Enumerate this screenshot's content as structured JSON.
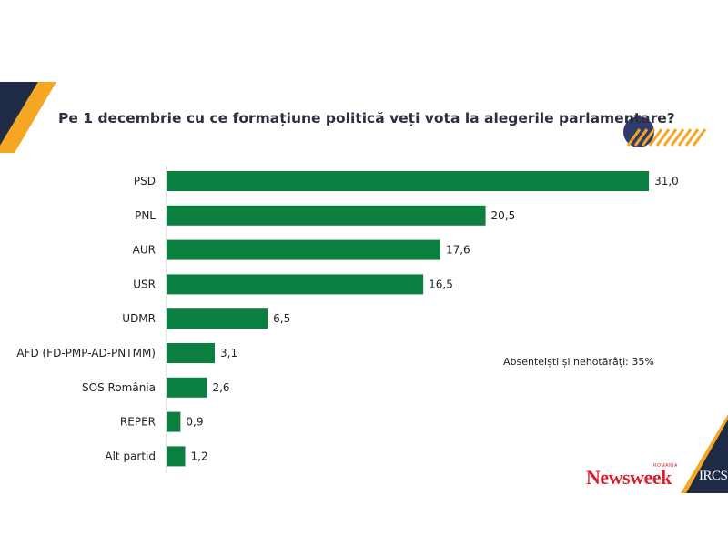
{
  "title": "Pe 1 decembrie cu ce formațiune politică veți vota la alegerile parlamentare?",
  "note": "Absenteiști și nehotărâți: 35%",
  "logos": {
    "newsweek": "Newsweek",
    "newsweek_sub": "ROMANIA",
    "ircs": "IRCS"
  },
  "colors": {
    "bar": "#0b7f3f",
    "navy": "#1f2a44",
    "orange": "#f5a623"
  },
  "chart_data": {
    "type": "bar",
    "orientation": "horizontal",
    "title": "Pe 1 decembrie cu ce formațiune politică veți vota la alegerile parlamentare?",
    "categories": [
      "PSD",
      "PNL",
      "AUR",
      "USR",
      "UDMR",
      "AFD (FD-PMP-AD-PNTMM)",
      "SOS România",
      "REPER",
      "Alt partid"
    ],
    "values": [
      31.0,
      20.5,
      17.6,
      16.5,
      6.5,
      3.1,
      2.6,
      0.9,
      1.2
    ],
    "value_labels": [
      "31,0",
      "20,5",
      "17,6",
      "16,5",
      "6,5",
      "3,1",
      "2,6",
      "0,9",
      "1,2"
    ],
    "xlabel": "",
    "ylabel": "",
    "grid": false,
    "legend": "none"
  }
}
